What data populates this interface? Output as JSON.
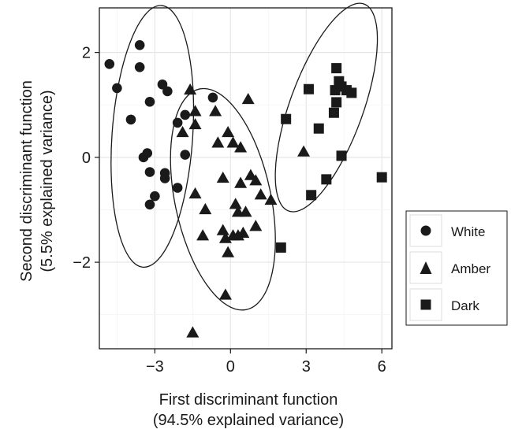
{
  "chart_data": {
    "type": "scatter",
    "title": "",
    "xlabel": [
      "First discriminant function",
      "(94.5% explained variance)"
    ],
    "ylabel": [
      "Second discriminant function",
      "(5.5% explained variance)"
    ],
    "xlim": [
      -5.2,
      6.4
    ],
    "ylim": [
      -3.65,
      2.85
    ],
    "xticks": [
      -3,
      0,
      3,
      6
    ],
    "xtick_labels": [
      "−3",
      "0",
      "3",
      "6"
    ],
    "yticks": [
      -2,
      0,
      2
    ],
    "ytick_labels": [
      "−2",
      "0",
      "2"
    ],
    "grid": true,
    "legend_position": "right",
    "series": [
      {
        "name": "White",
        "marker": "circle",
        "points": [
          [
            -4.8,
            1.78
          ],
          [
            -3.6,
            2.14
          ],
          [
            -3.6,
            1.72
          ],
          [
            -4.5,
            1.32
          ],
          [
            -3.2,
            1.06
          ],
          [
            -2.7,
            1.39
          ],
          [
            -2.5,
            1.26
          ],
          [
            -3.95,
            0.72
          ],
          [
            -2.1,
            0.66
          ],
          [
            -1.8,
            0.81
          ],
          [
            -3.3,
            0.08
          ],
          [
            -3.45,
            0.0
          ],
          [
            -1.8,
            0.05
          ],
          [
            -3.2,
            -0.28
          ],
          [
            -2.6,
            -0.3
          ],
          [
            -2.6,
            -0.4
          ],
          [
            -3.0,
            -0.74
          ],
          [
            -2.1,
            -0.58
          ],
          [
            -3.2,
            -0.9
          ],
          [
            -0.7,
            1.14
          ]
        ]
      },
      {
        "name": "Amber",
        "marker": "triangle",
        "points": [
          [
            -1.6,
            1.28
          ],
          [
            -1.4,
            0.87
          ],
          [
            -1.4,
            0.62
          ],
          [
            -1.9,
            0.47
          ],
          [
            -0.6,
            0.87
          ],
          [
            0.7,
            1.1
          ],
          [
            -0.1,
            0.47
          ],
          [
            0.1,
            0.27
          ],
          [
            -0.5,
            0.27
          ],
          [
            0.4,
            0.18
          ],
          [
            -1.4,
            -0.7
          ],
          [
            -0.3,
            -0.4
          ],
          [
            0.4,
            -0.5
          ],
          [
            0.8,
            -0.35
          ],
          [
            1.0,
            -0.45
          ],
          [
            -1.0,
            -1.0
          ],
          [
            0.2,
            -0.9
          ],
          [
            0.3,
            -1.05
          ],
          [
            0.6,
            -1.05
          ],
          [
            1.2,
            -0.72
          ],
          [
            1.6,
            -0.82
          ],
          [
            -1.1,
            -1.5
          ],
          [
            -0.3,
            -1.4
          ],
          [
            -0.2,
            -1.55
          ],
          [
            0.1,
            -1.5
          ],
          [
            0.3,
            -1.5
          ],
          [
            0.5,
            -1.45
          ],
          [
            1.0,
            -1.32
          ],
          [
            -0.1,
            -1.82
          ],
          [
            -0.2,
            -2.63
          ],
          [
            -1.5,
            -3.35
          ],
          [
            2.9,
            0.1
          ]
        ]
      },
      {
        "name": "Dark",
        "marker": "square",
        "points": [
          [
            4.2,
            1.7
          ],
          [
            3.1,
            1.3
          ],
          [
            4.3,
            1.45
          ],
          [
            4.4,
            1.35
          ],
          [
            4.15,
            1.28
          ],
          [
            4.6,
            1.28
          ],
          [
            4.8,
            1.23
          ],
          [
            4.2,
            1.05
          ],
          [
            4.1,
            0.85
          ],
          [
            2.2,
            0.73
          ],
          [
            3.5,
            0.55
          ],
          [
            4.4,
            0.03
          ],
          [
            3.8,
            -0.42
          ],
          [
            3.2,
            -0.72
          ],
          [
            6.0,
            -0.38
          ],
          [
            2.0,
            -1.72
          ]
        ]
      }
    ],
    "ellipses": [
      {
        "group": "White",
        "center": [
          -3.1,
          0.4
        ],
        "rx": 1.6,
        "ry": 2.5,
        "angle_deg": 4
      },
      {
        "group": "Amber",
        "center": [
          -0.3,
          -0.8
        ],
        "rx": 1.9,
        "ry": 2.15,
        "angle_deg": -12
      },
      {
        "group": "Dark",
        "center": [
          3.8,
          0.95
        ],
        "rx": 1.45,
        "ry": 2.1,
        "angle_deg": 20
      }
    ]
  }
}
